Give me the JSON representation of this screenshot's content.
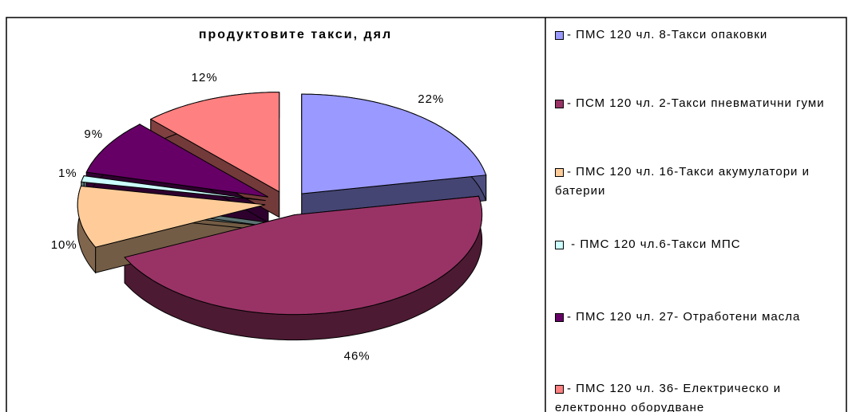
{
  "chart_data": {
    "type": "pie",
    "title": "продуктовите такси, дял",
    "categories": [
      "- ПМС 120 чл. 8-Такси опаковки",
      "- ПСМ 120 чл. 2-Такси пневматични гуми",
      "- ПМС 120 чл. 16-Такси акумулатори и батерии",
      " - ПМС 120 чл.6-Такси МПС",
      "- ПМС 120 чл. 27- Отработени масла",
      "- ПМС 120 чл. 36- Електрическо и електронно оборудване"
    ],
    "values": [
      22,
      46,
      10,
      1,
      9,
      12
    ],
    "value_labels": [
      "22%",
      "46%",
      "10%",
      "1%",
      "9%",
      "12%"
    ],
    "colors": [
      "#9999ff",
      "#993366",
      "#ffcc99",
      "#ccffff",
      "#660066",
      "#ff8080"
    ],
    "legend": "right"
  }
}
